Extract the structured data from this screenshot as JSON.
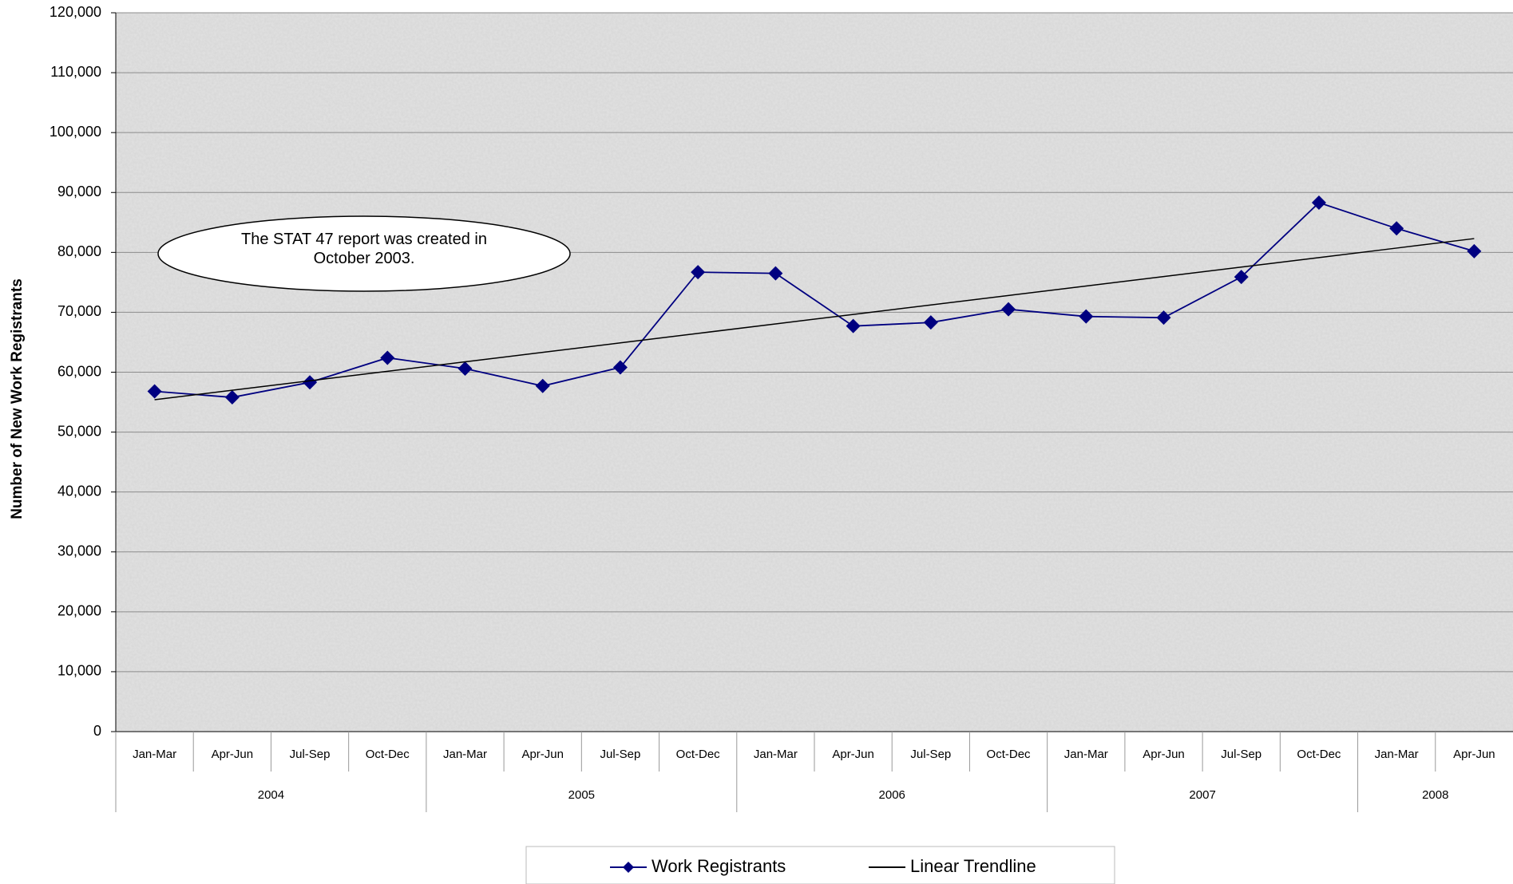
{
  "chart_data": {
    "type": "line",
    "y_label": "Number of New Work Registrants",
    "annotation": "The STAT 47 report was created in October 2003.",
    "groups": [
      {
        "name": "2004",
        "categories": [
          "Jan-Mar",
          "Apr-Jun",
          "Jul-Sep",
          "Oct-Dec"
        ]
      },
      {
        "name": "2005",
        "categories": [
          "Jan-Mar",
          "Apr-Jun",
          "Jul-Sep",
          "Oct-Dec"
        ]
      },
      {
        "name": "2006",
        "categories": [
          "Jan-Mar",
          "Apr-Jun",
          "Jul-Sep",
          "Oct-Dec"
        ]
      },
      {
        "name": "2007",
        "categories": [
          "Jan-Mar",
          "Apr-Jun",
          "Jul-Sep",
          "Oct-Dec"
        ]
      },
      {
        "name": "2008",
        "categories": [
          "Jan-Mar",
          "Apr-Jun"
        ]
      }
    ],
    "series": [
      {
        "name": "Work Registrants",
        "color": "#000080",
        "marker": "diamond",
        "values": [
          56800,
          55800,
          58300,
          62400,
          60600,
          57700,
          60800,
          76700,
          76500,
          67700,
          68300,
          70500,
          69300,
          69100,
          75900,
          88300,
          84000,
          80200
        ]
      },
      {
        "name": "Linear Trendline",
        "color": "#000000",
        "marker": "none",
        "values": [
          55400,
          56982,
          58565,
          60147,
          61729,
          63312,
          64894,
          66476,
          68059,
          69641,
          71224,
          72806,
          74388,
          75971,
          77553,
          79135,
          80718,
          82300
        ]
      }
    ],
    "ylim": [
      0,
      120000
    ],
    "yticks": [
      {
        "value": 0,
        "label": "0"
      },
      {
        "value": 10000,
        "label": "10,000"
      },
      {
        "value": 20000,
        "label": "20,000"
      },
      {
        "value": 30000,
        "label": "30,000"
      },
      {
        "value": 40000,
        "label": "40,000"
      },
      {
        "value": 50000,
        "label": "50,000"
      },
      {
        "value": 60000,
        "label": "60,000"
      },
      {
        "value": 70000,
        "label": "70,000"
      },
      {
        "value": 80000,
        "label": "80,000"
      },
      {
        "value": 90000,
        "label": "90,000"
      },
      {
        "value": 100000,
        "label": "100,000"
      },
      {
        "value": 110000,
        "label": "110,000"
      },
      {
        "value": 120000,
        "label": "120,000"
      }
    ],
    "grid": true
  }
}
